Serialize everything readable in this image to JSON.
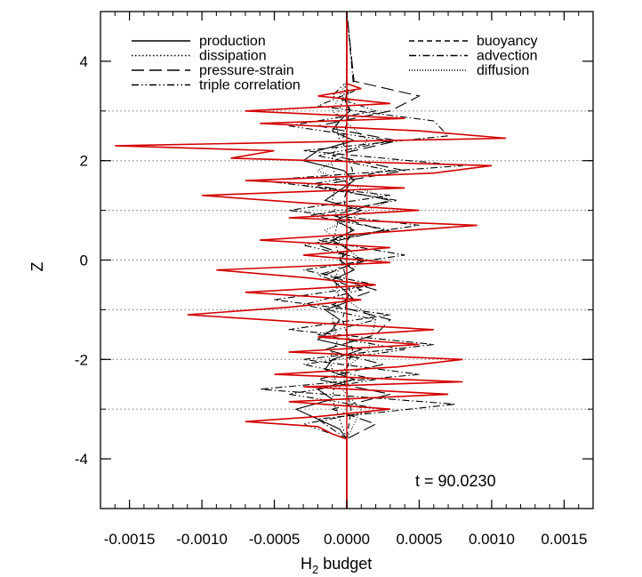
{
  "chart_data": {
    "type": "line",
    "orientation": "vertical-profile",
    "xlabel": "H",
    "xlabel_sub": "2",
    "xlabel_rest": " budget",
    "ylabel": "Z",
    "xlim": [
      -0.0017,
      0.0017
    ],
    "ylim": [
      -5,
      5
    ],
    "x_tick_labels": [
      "-0.0015",
      "-0.0010",
      "-0.0005",
      "0.0000",
      "0.0005",
      "0.0010",
      "0.0015"
    ],
    "x_tick_values": [
      -0.0015,
      -0.001,
      -0.0005,
      0.0,
      0.0005,
      0.001,
      0.0015
    ],
    "y_tick_labels": [
      "-4",
      "-2",
      "0",
      "2",
      "4"
    ],
    "y_tick_values": [
      -4,
      -2,
      0,
      2,
      4
    ],
    "reference_lines_z": [
      -3,
      -2,
      -1,
      0,
      1,
      2,
      3
    ],
    "annotation": "t = 90.0230",
    "grid": false,
    "legend_placement": "top",
    "legend": [
      {
        "label": "production",
        "style": "solid",
        "color": "#000000",
        "column": "left"
      },
      {
        "label": "dissipation",
        "style": "dotted",
        "color": "#000000",
        "column": "left"
      },
      {
        "label": "pressure-strain",
        "style": "long-dash",
        "color": "#000000",
        "column": "left"
      },
      {
        "label": "triple correlation",
        "style": "dash-dot-dot",
        "color": "#000000",
        "column": "left"
      },
      {
        "label": "buoyancy",
        "style": "dashed",
        "color": "#000000",
        "column": "right"
      },
      {
        "label": "advection",
        "style": "dash-dot",
        "color": "#000000",
        "column": "right"
      },
      {
        "label": "diffusion",
        "style": "fine-dotted",
        "color": "#000000",
        "column": "right"
      }
    ],
    "series": [
      {
        "name": "production",
        "style": "solid",
        "color": "#000000",
        "z": [
          -5.0,
          -3.6,
          -3.4,
          -3.2,
          -3.0,
          -2.8,
          -2.6,
          -2.4,
          -2.2,
          -2.0,
          -1.8,
          -1.6,
          -1.4,
          -1.2,
          -1.0,
          -0.8,
          -0.6,
          -0.4,
          -0.2,
          0.0,
          0.2,
          0.4,
          0.6,
          0.8,
          1.0,
          1.2,
          1.4,
          1.6,
          1.8,
          2.0,
          2.2,
          2.4,
          2.6,
          2.8,
          3.0,
          3.2,
          3.4,
          5.0
        ],
        "x": [
          0.0,
          0.0,
          -5e-05,
          -0.0002,
          -0.00035,
          -0.0001,
          -0.0002,
          5e-05,
          -0.00015,
          -0.0001,
          0.0001,
          -0.0002,
          -0.0001,
          -5e-05,
          -0.00015,
          5e-05,
          -2e-05,
          -0.0001,
          5e-05,
          -5e-05,
          2e-05,
          -0.0001,
          5e-05,
          -8e-05,
          0.0001,
          -0.00015,
          -5e-05,
          5e-05,
          -2e-05,
          -0.0003,
          -0.0002,
          5e-05,
          -0.0001,
          -5e-05,
          2e-05,
          -1e-05,
          0.0,
          0.0
        ]
      },
      {
        "name": "dissipation",
        "style": "dotted",
        "color": "#000000",
        "z": [
          -5.0,
          -3.6,
          -3.2,
          -2.8,
          -2.4,
          -2.0,
          -1.6,
          -1.2,
          -0.8,
          -0.4,
          0.0,
          0.4,
          0.8,
          1.2,
          1.6,
          2.0,
          2.4,
          2.8,
          3.2,
          3.6,
          5.0
        ],
        "x": [
          0.0,
          0.0,
          -5e-05,
          -0.0001,
          -8e-05,
          -0.00012,
          -6e-05,
          -0.0001,
          -5e-05,
          -8e-05,
          -4e-05,
          -9e-05,
          -6e-05,
          -0.0001,
          -7e-05,
          -0.00011,
          -5e-05,
          -8e-05,
          -3e-05,
          0.0,
          0.0
        ]
      },
      {
        "name": "pressure-strain",
        "style": "long-dash",
        "color": "#000000",
        "z": [
          -5.0,
          -3.6,
          -3.3,
          -3.0,
          -2.7,
          -2.4,
          -2.1,
          -1.8,
          -1.5,
          -1.2,
          -0.9,
          -0.6,
          -0.3,
          0.0,
          0.3,
          0.6,
          0.9,
          1.2,
          1.5,
          1.8,
          2.1,
          2.4,
          2.7,
          3.0,
          3.3,
          3.6,
          5.0
        ],
        "x": [
          0.0,
          0.0,
          0.0002,
          -0.0001,
          0.0003,
          -0.0002,
          0.00025,
          -0.00015,
          0.0002,
          0.0003,
          -0.0001,
          0.0002,
          -0.00015,
          0.0001,
          -0.0002,
          0.00025,
          -0.0001,
          0.0003,
          -0.0002,
          0.0004,
          -0.0001,
          0.00035,
          -0.0002,
          0.0003,
          0.0005,
          5e-05,
          0.0
        ]
      },
      {
        "name": "triple correlation",
        "style": "dash-dot-dot",
        "color": "#000000",
        "z": [
          -5.0,
          -3.6,
          -3.3,
          -3.0,
          -2.7,
          -2.4,
          -2.1,
          -1.8,
          -1.5,
          -1.2,
          -0.9,
          -0.6,
          -0.3,
          0.0,
          0.3,
          0.6,
          0.9,
          1.2,
          1.5,
          1.8,
          2.1,
          2.4,
          2.7,
          3.0,
          3.3,
          3.6,
          5.0
        ],
        "x": [
          0.0,
          0.0,
          -0.0003,
          0.00025,
          -0.0004,
          0.0002,
          -0.0003,
          0.0004,
          -0.0002,
          0.0002,
          -0.0003,
          0.0001,
          -0.0002,
          0.00015,
          -0.0003,
          0.0003,
          -0.00025,
          0.00035,
          -0.0003,
          0.0003,
          -0.0002,
          0.0003,
          -0.0004,
          0.0002,
          -0.0001,
          0.0,
          0.0
        ]
      },
      {
        "name": "buoyancy",
        "style": "dashed",
        "color": "#000000",
        "z": [
          -5.0,
          -3.6,
          -3.0,
          -2.4,
          -1.8,
          -1.2,
          -0.6,
          0.0,
          0.6,
          1.2,
          1.8,
          2.4,
          3.0,
          3.6,
          5.0
        ],
        "x": [
          0.0,
          0.0,
          3e-05,
          -2e-05,
          4e-05,
          -3e-05,
          2e-05,
          -4e-05,
          3e-05,
          -2e-05,
          4e-05,
          -3e-05,
          2e-05,
          0.0,
          0.0
        ]
      },
      {
        "name": "advection",
        "style": "dash-dot",
        "color": "#000000",
        "z": [
          -5.0,
          -3.6,
          -3.2,
          -2.9,
          -2.6,
          -2.3,
          -2.0,
          -1.7,
          -1.4,
          -1.1,
          -0.8,
          -0.5,
          -0.2,
          0.1,
          0.4,
          0.7,
          1.0,
          1.3,
          1.6,
          1.9,
          2.2,
          2.5,
          2.8,
          3.1,
          3.4,
          5.0
        ],
        "x": [
          0.0,
          0.0,
          -0.0002,
          0.00075,
          -0.0006,
          0.0005,
          -0.0003,
          0.0006,
          -0.0004,
          0.0003,
          -0.0005,
          0.0002,
          -0.0003,
          0.0004,
          -0.0002,
          0.0005,
          -0.0004,
          0.0003,
          -0.0006,
          0.0008,
          -0.0003,
          0.0007,
          0.0006,
          -0.0002,
          5e-05,
          0.0
        ]
      },
      {
        "name": "diffusion",
        "style": "fine-dotted",
        "color": "#000000",
        "z": [
          -5.0,
          -3.6,
          -3.0,
          -2.4,
          -1.8,
          -1.2,
          -0.6,
          0.0,
          0.6,
          1.2,
          1.8,
          2.4,
          3.0,
          3.6,
          5.0
        ],
        "x": [
          0.0,
          0.0,
          0.0001,
          -0.0001,
          0.00015,
          0.0002,
          -0.0001,
          0.0001,
          -0.00015,
          0.0003,
          -0.0002,
          0.00015,
          -0.0001,
          0.0,
          0.0
        ]
      },
      {
        "name": "red (total)",
        "style": "solid",
        "color": "#d40000",
        "z": [
          -5.0,
          -3.6,
          -3.5,
          -3.35,
          -3.25,
          -3.15,
          -3.0,
          -2.85,
          -2.7,
          -2.55,
          -2.45,
          -2.3,
          -2.15,
          -2.0,
          -1.85,
          -1.7,
          -1.55,
          -1.4,
          -1.25,
          -1.1,
          -0.95,
          -0.8,
          -0.65,
          -0.5,
          -0.35,
          -0.2,
          -0.05,
          0.1,
          0.25,
          0.4,
          0.55,
          0.7,
          0.85,
          1.0,
          1.15,
          1.3,
          1.45,
          1.6,
          1.75,
          1.9,
          2.05,
          2.2,
          2.3,
          2.45,
          2.6,
          2.75,
          2.85,
          3.0,
          3.15,
          3.3,
          3.45,
          3.55,
          5.0
        ],
        "x": [
          0.0,
          0.0,
          -0.0001,
          -0.0002,
          -0.0007,
          -0.0002,
          0.0003,
          -0.0004,
          0.0007,
          -0.0003,
          0.0008,
          -0.0005,
          0.00035,
          0.0008,
          -0.0004,
          0.0005,
          -0.0002,
          0.0006,
          -0.0003,
          -0.0011,
          -0.0004,
          0.0001,
          -0.0007,
          0.0002,
          -0.0003,
          -0.0009,
          0.0003,
          -0.0003,
          0.0003,
          -0.0006,
          0.0002,
          0.0009,
          -0.0004,
          0.0005,
          -0.0003,
          -0.001,
          0.0004,
          -0.0007,
          0.0006,
          0.001,
          -0.0008,
          -0.0005,
          -0.0016,
          0.0011,
          0.0005,
          -0.0006,
          0.0004,
          -0.0007,
          0.0003,
          -0.0002,
          0.0001,
          0.0,
          0.0
        ]
      }
    ]
  }
}
